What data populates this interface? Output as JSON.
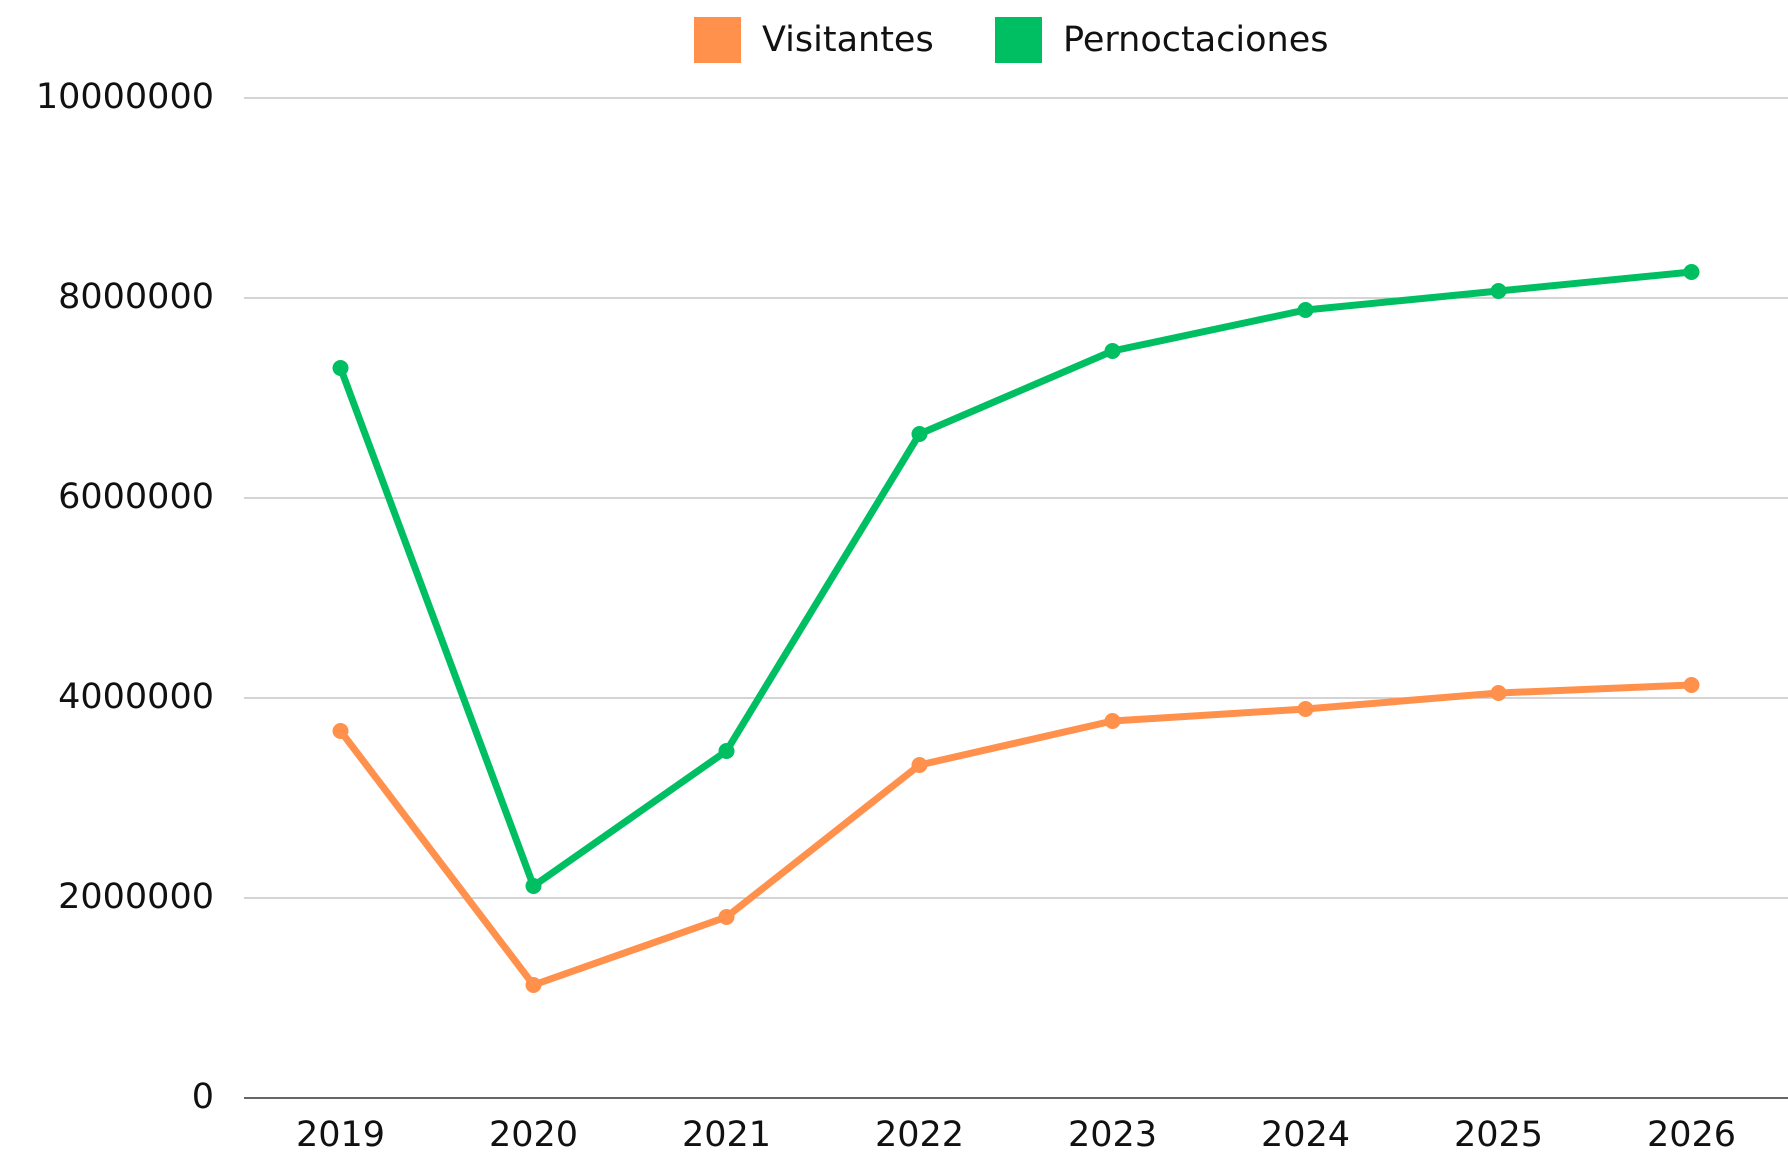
{
  "chart_data": {
    "type": "line",
    "categories": [
      "2019",
      "2020",
      "2021",
      "2022",
      "2023",
      "2024",
      "2025",
      "2026"
    ],
    "series": [
      {
        "name": "Visitantes",
        "color": "#ff914d",
        "values": [
          3670000,
          1130000,
          1810000,
          3330000,
          3770000,
          3890000,
          4050000,
          4130000
        ]
      },
      {
        "name": "Pernoctaciones",
        "color": "#00bf63",
        "values": [
          7300000,
          2120000,
          3470000,
          6640000,
          7470000,
          7880000,
          8070000,
          8260000
        ]
      }
    ],
    "ylim": [
      0,
      10000000
    ],
    "yticks": [
      0,
      2000000,
      4000000,
      6000000,
      8000000,
      10000000
    ],
    "grid": true,
    "legend": "top"
  }
}
